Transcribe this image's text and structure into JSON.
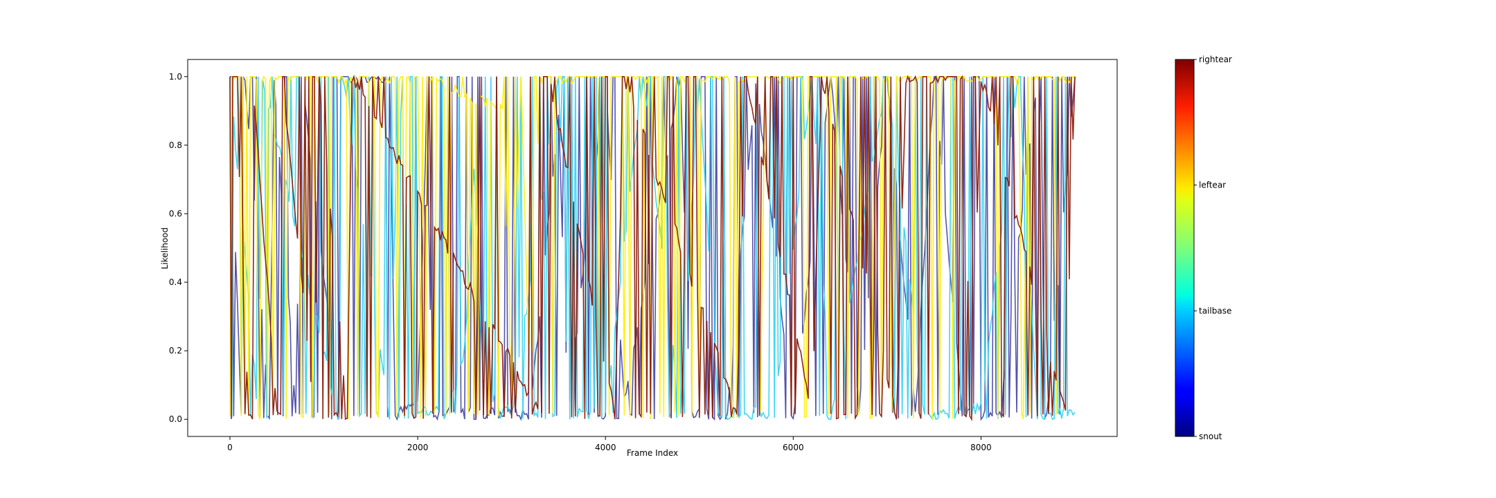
{
  "chart_data": {
    "type": "line",
    "title": "",
    "xlabel": "Frame Index",
    "ylabel": "Likelihood",
    "xlim": [
      -450,
      9450
    ],
    "ylim": [
      -0.05,
      1.05
    ],
    "xticks": [
      0,
      2000,
      4000,
      6000,
      8000
    ],
    "xtick_labels": [
      "0",
      "2000",
      "4000",
      "6000",
      "8000"
    ],
    "yticks": [
      0.0,
      0.2,
      0.4,
      0.6,
      0.8,
      1.0
    ],
    "ytick_labels": [
      "0.0",
      "0.2",
      "0.4",
      "0.6",
      "0.8",
      "1.0"
    ],
    "grid": false,
    "n_frames": 9000,
    "colorbar": {
      "colormap": "jet",
      "ticks": [
        {
          "value": 0.0,
          "label": "snout"
        },
        {
          "value": 0.333,
          "label": "tailbase"
        },
        {
          "value": 0.667,
          "label": "leftear"
        },
        {
          "value": 1.0,
          "label": "rightear"
        }
      ]
    },
    "series": [
      {
        "name": "snout",
        "color": "#4a4aa8",
        "segments": [
          [
            0,
            1
          ],
          [
            120,
            0.01
          ],
          [
            160,
            1
          ],
          [
            420,
            0.01
          ],
          [
            470,
            1
          ],
          [
            700,
            0.02
          ],
          [
            760,
            1
          ],
          [
            1050,
            0.3
          ],
          [
            1100,
            1
          ],
          [
            1700,
            1
          ],
          [
            1760,
            0.01
          ],
          [
            2000,
            0.05
          ],
          [
            2100,
            0.9
          ],
          [
            2150,
            0.02
          ],
          [
            2500,
            0.03
          ],
          [
            2600,
            0.01
          ],
          [
            3000,
            0.02
          ],
          [
            3200,
            0.01
          ],
          [
            3500,
            0.9
          ],
          [
            3600,
            0.02
          ],
          [
            4000,
            1
          ],
          [
            4200,
            0.05
          ],
          [
            4800,
            1
          ],
          [
            4900,
            0.02
          ],
          [
            5300,
            0.01
          ],
          [
            5600,
            1
          ],
          [
            6000,
            0.01
          ],
          [
            6400,
            1
          ],
          [
            6700,
            0.02
          ],
          [
            7000,
            1
          ],
          [
            7300,
            0.01
          ],
          [
            7500,
            1
          ],
          [
            7800,
            0.01
          ],
          [
            8200,
            0.02
          ],
          [
            8600,
            1
          ],
          [
            8700,
            0.01
          ],
          [
            9000,
            1
          ]
        ]
      },
      {
        "name": "tailbase",
        "color": "#38d4f0",
        "segments": [
          [
            0,
            1
          ],
          [
            300,
            0.01
          ],
          [
            350,
            1
          ],
          [
            1150,
            0.01
          ],
          [
            1200,
            1
          ],
          [
            1700,
            0.01
          ],
          [
            1800,
            1
          ],
          [
            2000,
            0.02
          ],
          [
            2300,
            0.03
          ],
          [
            2500,
            0.2
          ],
          [
            2600,
            0.75
          ],
          [
            2700,
            0.1
          ],
          [
            3000,
            0.01
          ],
          [
            3500,
            1
          ],
          [
            3600,
            0.01
          ],
          [
            4000,
            0.02
          ],
          [
            4400,
            1
          ],
          [
            4800,
            0.01
          ],
          [
            5000,
            1
          ],
          [
            5200,
            0.01
          ],
          [
            5800,
            0.02
          ],
          [
            6200,
            1
          ],
          [
            6400,
            0.01
          ],
          [
            7000,
            1
          ],
          [
            7400,
            0.01
          ],
          [
            8000,
            0.03
          ],
          [
            8400,
            1
          ],
          [
            8600,
            0.01
          ],
          [
            9000,
            0.02
          ]
        ]
      },
      {
        "name": "leftear",
        "color": "#ffee10",
        "segments": [
          [
            0,
            1
          ],
          [
            2000,
            1
          ],
          [
            2050,
            0.01
          ],
          [
            2100,
            1
          ],
          [
            2900,
            0.9
          ],
          [
            3000,
            0.05
          ],
          [
            3100,
            1
          ],
          [
            3200,
            0.01
          ],
          [
            3300,
            1
          ],
          [
            5600,
            1
          ],
          [
            5650,
            0.02
          ],
          [
            5700,
            1
          ],
          [
            7000,
            1
          ],
          [
            7050,
            0.01
          ],
          [
            7100,
            1
          ],
          [
            8400,
            1
          ],
          [
            8450,
            0.01
          ],
          [
            8500,
            1
          ],
          [
            9000,
            1
          ]
        ]
      },
      {
        "name": "rightear",
        "color": "#8b1a0a",
        "segments": [
          [
            0,
            1
          ],
          [
            30,
            0.01
          ],
          [
            60,
            1
          ],
          [
            200,
            0.01
          ],
          [
            240,
            1
          ],
          [
            500,
            0.01
          ],
          [
            560,
            1
          ],
          [
            900,
            0.01
          ],
          [
            950,
            1
          ],
          [
            1250,
            0.01
          ],
          [
            1300,
            1
          ],
          [
            3300,
            0.02
          ],
          [
            3400,
            1
          ],
          [
            4100,
            0.01
          ],
          [
            4200,
            1
          ],
          [
            5400,
            0.01
          ],
          [
            5500,
            1
          ],
          [
            6200,
            0.01
          ],
          [
            6300,
            1
          ],
          [
            7100,
            0.01
          ],
          [
            7200,
            1
          ],
          [
            7800,
            1
          ],
          [
            7900,
            0.01
          ],
          [
            8000,
            1
          ],
          [
            8900,
            0.01
          ],
          [
            9000,
            1
          ]
        ]
      }
    ]
  }
}
